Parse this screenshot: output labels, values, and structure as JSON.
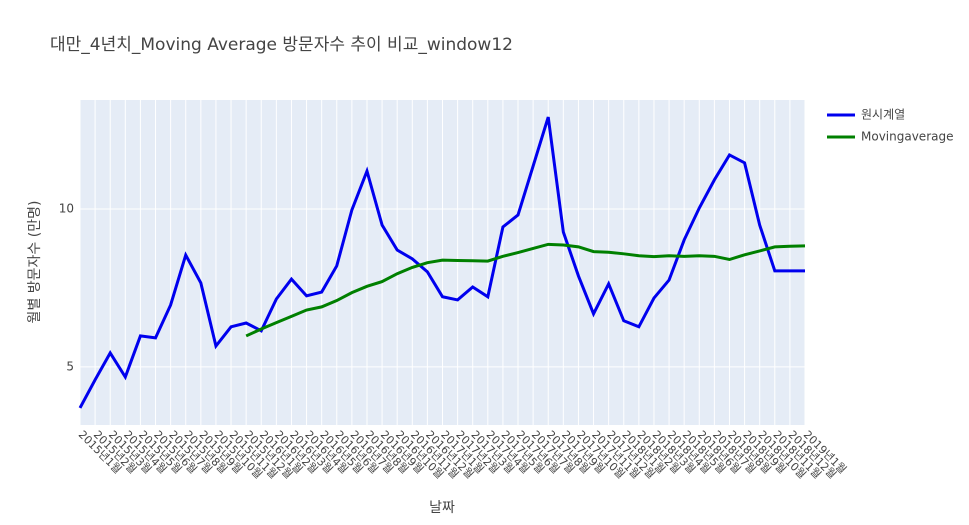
{
  "chart_data": {
    "type": "line",
    "title": "대만_4년치_Moving Average 방문자수 추이 비교_window12",
    "xlabel": "날짜",
    "ylabel": "월별 방문자수 (만명)",
    "categories": [
      "2015년1월",
      "2015년2월",
      "2015년3월",
      "2015년4월",
      "2015년5월",
      "2015년6월",
      "2015년7월",
      "2015년8월",
      "2015년9월",
      "2015년10월",
      "2015년11월",
      "2015년12월",
      "2016년1월",
      "2016년2월",
      "2016년3월",
      "2016년4월",
      "2016년5월",
      "2016년6월",
      "2016년7월",
      "2016년8월",
      "2016년9월",
      "2016년10월",
      "2016년11월",
      "2016년12월",
      "2017년1월",
      "2017년2월",
      "2017년3월",
      "2017년4월",
      "2017년5월",
      "2017년6월",
      "2017년7월",
      "2017년8월",
      "2017년9월",
      "2017년10월",
      "2017년11월",
      "2017년12월",
      "2018년1월",
      "2018년2월",
      "2018년3월",
      "2018년4월",
      "2018년5월",
      "2018년6월",
      "2018년7월",
      "2018년8월",
      "2018년9월",
      "2018년10월",
      "2018년11월",
      "2018년12월",
      "2019년1월"
    ],
    "series": [
      {
        "name": "원시계열",
        "color": "#0000ee",
        "values": [
          3.7,
          4.59,
          5.44,
          4.68,
          5.98,
          5.92,
          6.96,
          8.54,
          7.66,
          5.66,
          6.27,
          6.39,
          6.14,
          7.15,
          7.78,
          7.25,
          7.37,
          8.2,
          9.97,
          11.2,
          9.49,
          8.7,
          8.42,
          8.01,
          7.22,
          7.12,
          7.53,
          7.22,
          9.43,
          9.81,
          11.36,
          12.91,
          9.27,
          7.88,
          6.68,
          7.63,
          6.46,
          6.27,
          7.18,
          7.75,
          9.02,
          10.03,
          10.92,
          11.71,
          11.46,
          9.49,
          8.04,
          8.04,
          8.04
        ]
      },
      {
        "name": "Movingaverage",
        "color": "#008000",
        "values": [
          null,
          null,
          null,
          null,
          null,
          null,
          null,
          null,
          null,
          null,
          null,
          5.98,
          6.2,
          6.4,
          6.6,
          6.8,
          6.9,
          7.1,
          7.35,
          7.55,
          7.7,
          7.95,
          8.15,
          8.3,
          8.38,
          8.37,
          8.36,
          8.35,
          8.5,
          8.62,
          8.75,
          8.88,
          8.86,
          8.8,
          8.65,
          8.63,
          8.58,
          8.52,
          8.49,
          8.52,
          8.5,
          8.52,
          8.5,
          8.4,
          8.55,
          8.67,
          8.8,
          8.82,
          8.83
        ]
      }
    ],
    "ylim": [
      3.16,
      13.45
    ],
    "yticks": [
      5,
      10
    ],
    "grid": true,
    "legend": "top-right"
  }
}
